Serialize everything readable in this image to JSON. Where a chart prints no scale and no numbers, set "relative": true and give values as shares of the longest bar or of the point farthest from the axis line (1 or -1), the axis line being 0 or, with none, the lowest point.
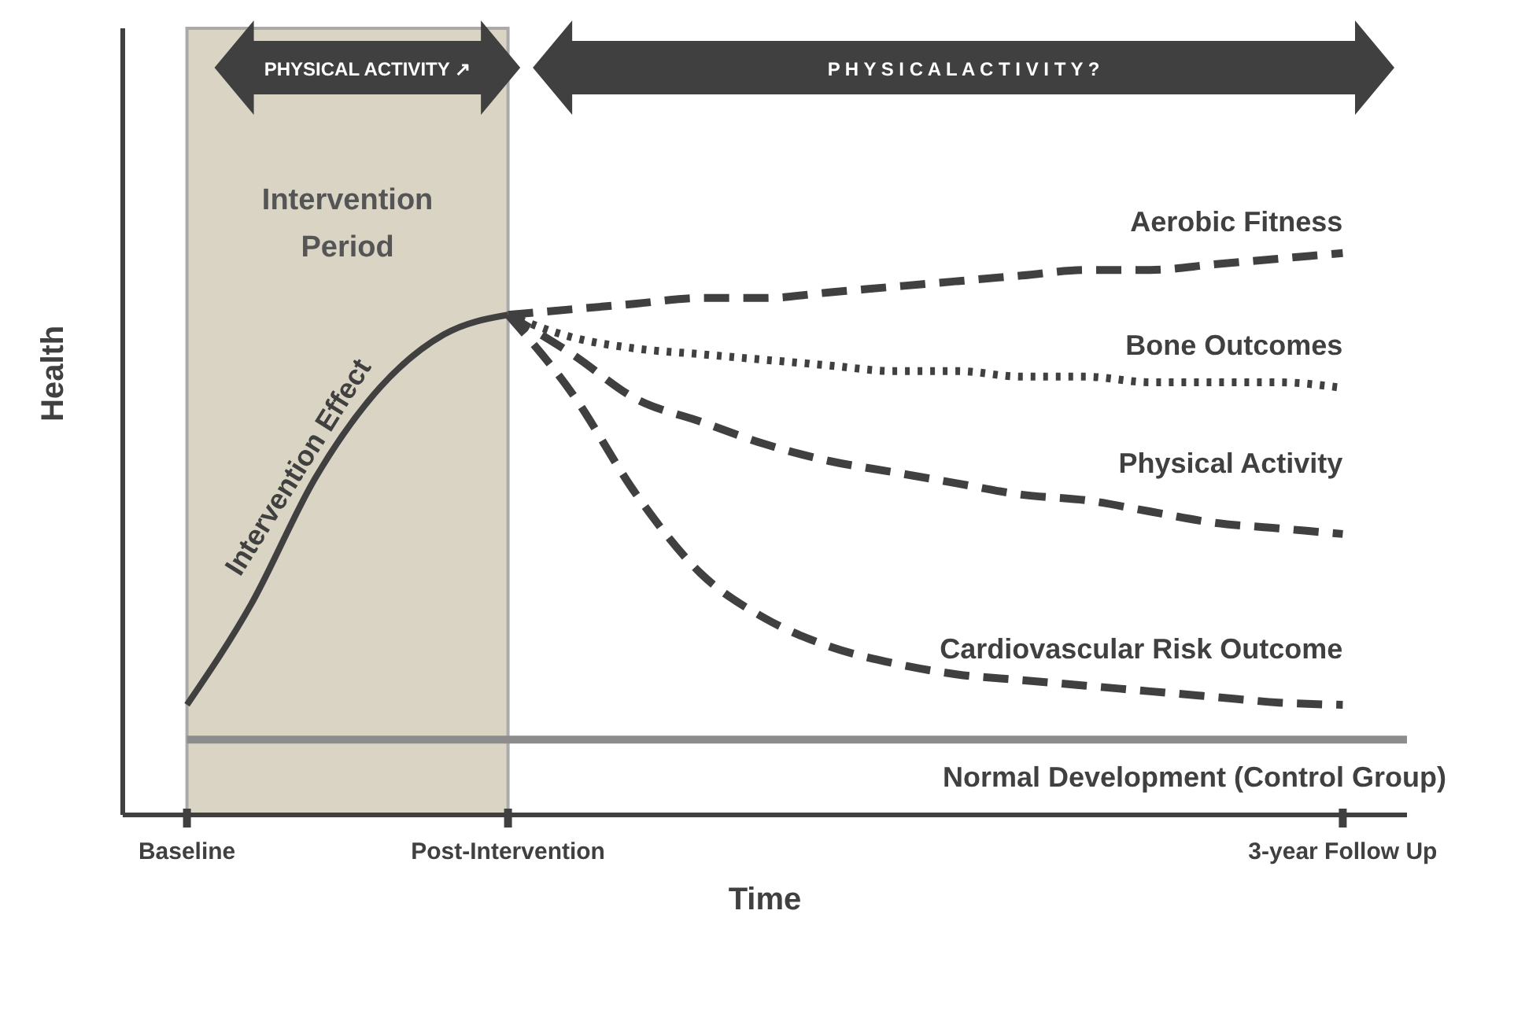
{
  "chart_data": {
    "type": "line",
    "relative": true,
    "xlabel": "Time",
    "ylabel": "Health",
    "categories": [
      null,
      "Baseline",
      null,
      null,
      null,
      null,
      "Post-Intervention",
      null,
      null,
      null,
      null,
      null,
      null,
      null,
      null,
      null,
      null,
      null,
      null,
      "3-year Follow Up",
      null
    ],
    "series": [
      {
        "name": "Intervention Effect",
        "color": "#404040",
        "line_style": "solid",
        "values": [
          null,
          0.196,
          0.375,
          0.6,
          0.76,
          0.855,
          0.89,
          null,
          null,
          null,
          null,
          null,
          null,
          null,
          null,
          null,
          null,
          null,
          null,
          null,
          null
        ]
      },
      {
        "name": "Aerobic Fitness",
        "color": "#404040",
        "line_style": "dashed",
        "values": [
          null,
          null,
          null,
          null,
          null,
          null,
          0.89,
          0.9,
          0.91,
          0.92,
          0.92,
          0.93,
          0.94,
          0.95,
          0.96,
          0.97,
          0.97,
          0.98,
          0.99,
          1.0,
          null
        ]
      },
      {
        "name": "Bone Outcomes",
        "color": "#404040",
        "line_style": "dotted",
        "values": [
          null,
          null,
          null,
          null,
          null,
          null,
          0.89,
          0.85,
          0.83,
          0.82,
          0.81,
          0.8,
          0.79,
          0.79,
          0.78,
          0.78,
          0.77,
          0.77,
          0.77,
          0.76,
          null
        ]
      },
      {
        "name": "Physical Activity",
        "color": "#404040",
        "line_style": "dashed",
        "values": [
          null,
          null,
          null,
          null,
          null,
          null,
          0.89,
          0.82,
          0.74,
          0.7,
          0.66,
          0.63,
          0.61,
          0.59,
          0.57,
          0.56,
          0.54,
          0.52,
          0.51,
          0.5,
          null
        ]
      },
      {
        "name": "Cardiovascular Risk Outcome",
        "color": "#404040",
        "line_style": "dashed",
        "values": [
          null,
          null,
          null,
          null,
          null,
          null,
          0.89,
          0.75,
          0.57,
          0.43,
          0.35,
          0.3,
          0.27,
          0.25,
          0.24,
          0.23,
          0.22,
          0.21,
          0.2,
          0.196,
          null
        ]
      },
      {
        "name": "Normal Development (Control Group)",
        "color": "#8c8c8c",
        "line_style": "solid",
        "values": [
          null,
          0.134,
          0.134,
          0.134,
          0.134,
          0.134,
          0.134,
          0.134,
          0.134,
          0.134,
          0.134,
          0.134,
          0.134,
          0.134,
          0.134,
          0.134,
          0.134,
          0.134,
          0.134,
          0.134,
          0.134
        ]
      }
    ],
    "bands": [
      {
        "axis": "x",
        "from": "Baseline",
        "to": "Post-Intervention",
        "label": "Intervention Period",
        "color": "#d9d4c3"
      }
    ],
    "annotations": [
      "PHYSICAL ACTIVITY ↗",
      "P H Y S I C A L   A C T I V I T Y   ?"
    ],
    "legend": false,
    "grid": false
  }
}
